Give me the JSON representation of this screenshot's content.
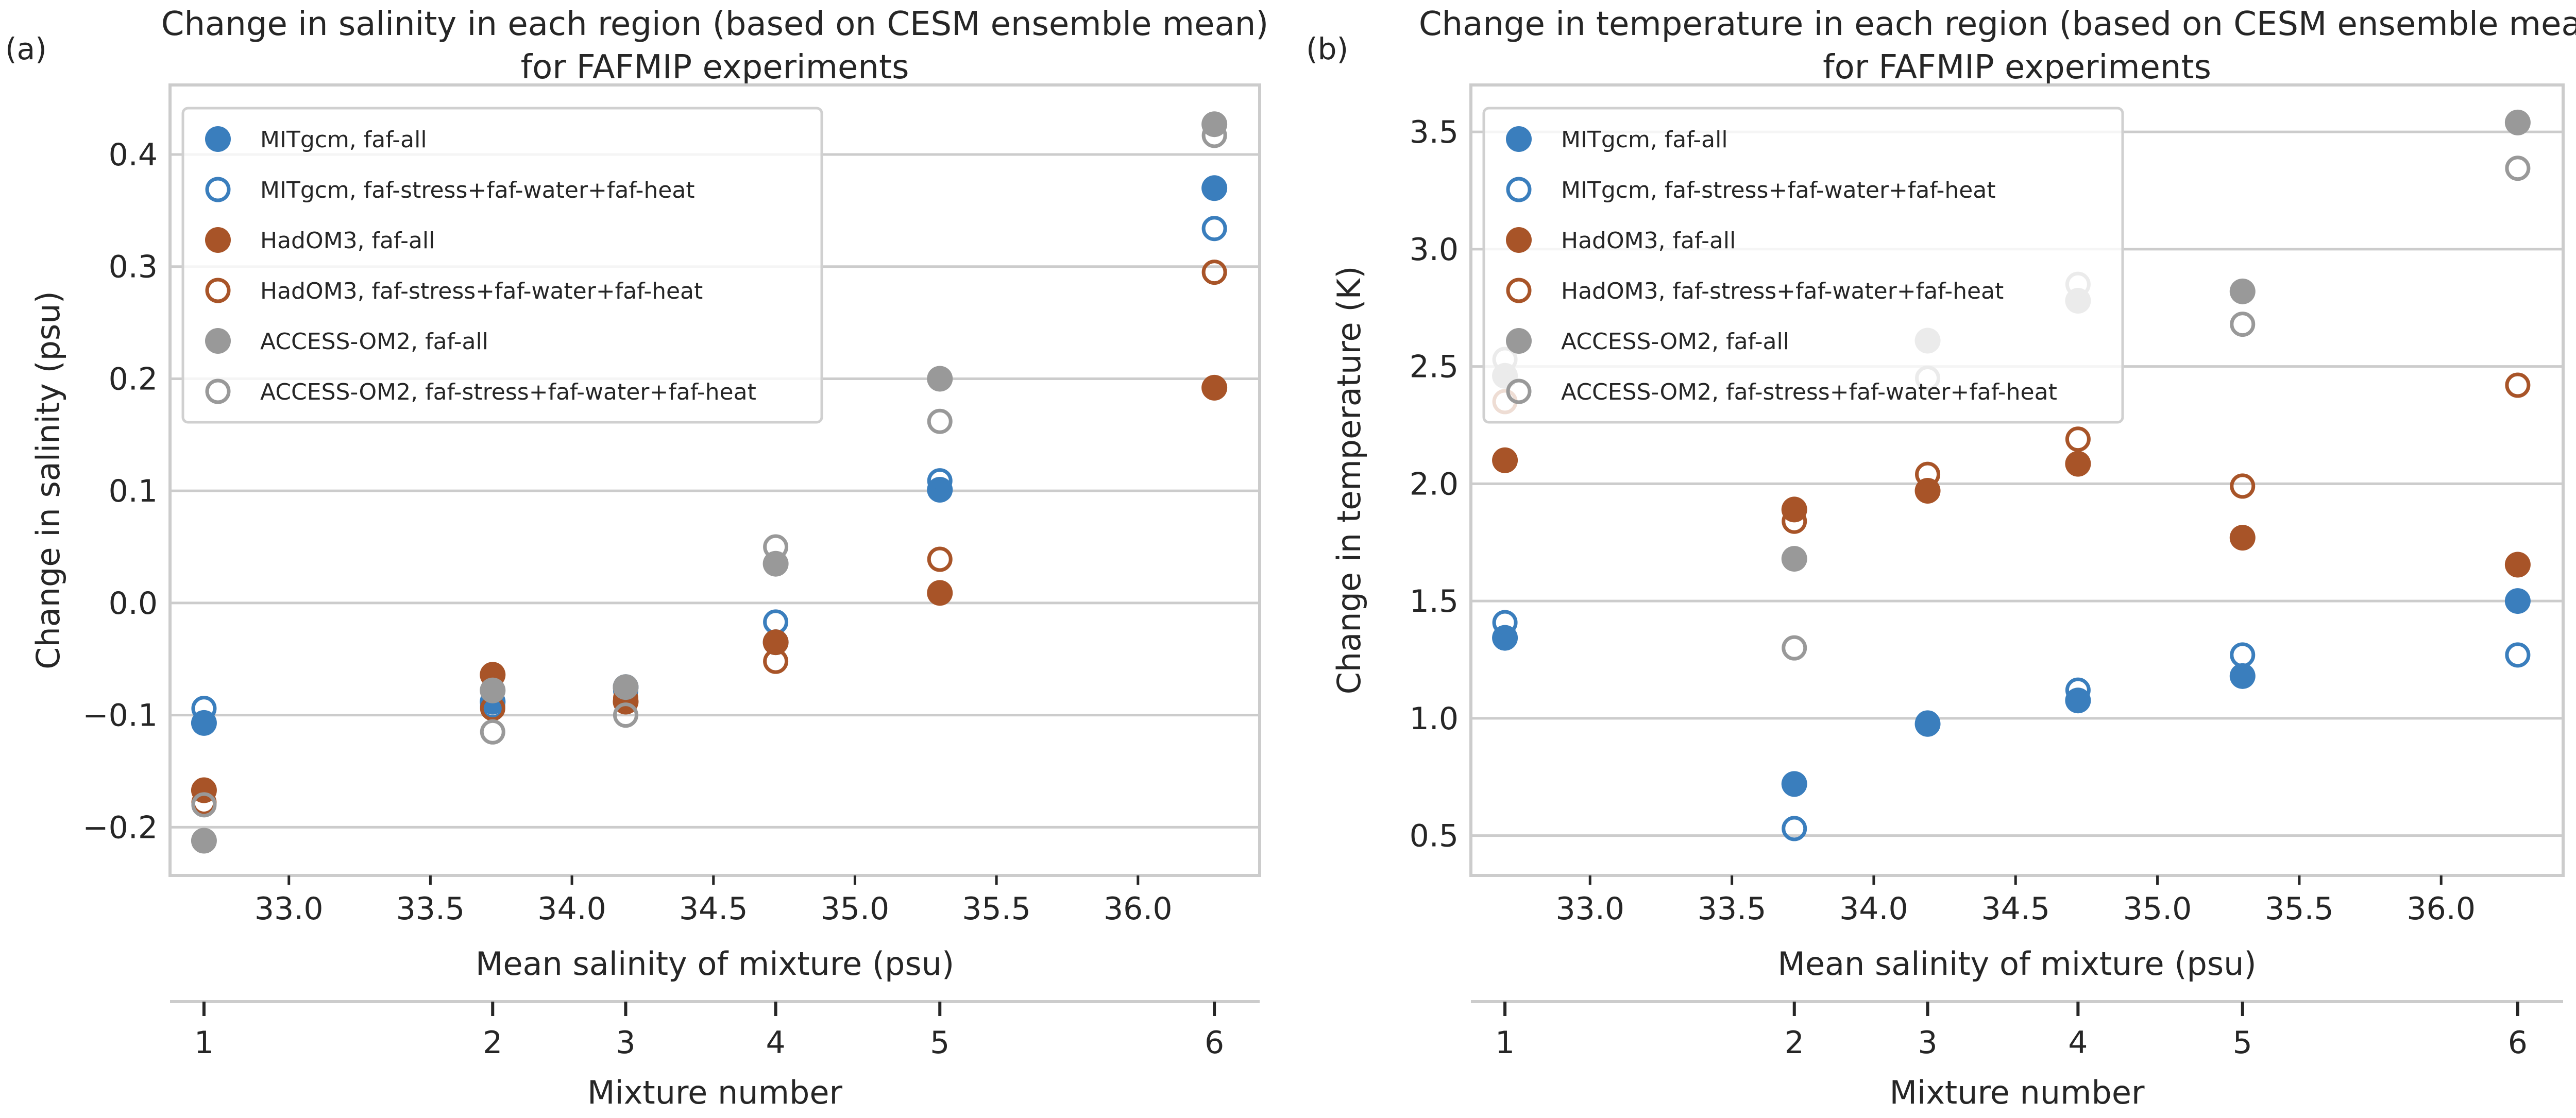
{
  "colors": {
    "MITgcm": "#3a7ebd",
    "HadOM3": "#a85428",
    "ACCESS-OM2": "#999999",
    "grid": "#cccccc",
    "spine": "#cccccc"
  },
  "legend": [
    {
      "label": "MITgcm, faf-all",
      "model": "MITgcm",
      "filled": true
    },
    {
      "label": "MITgcm, faf-stress+faf-water+faf-heat",
      "model": "MITgcm",
      "filled": false
    },
    {
      "label": "HadOM3, faf-all",
      "model": "HadOM3",
      "filled": true
    },
    {
      "label": "HadOM3, faf-stress+faf-water+faf-heat",
      "model": "HadOM3",
      "filled": false
    },
    {
      "label": "ACCESS-OM2, faf-all",
      "model": "ACCESS-OM2",
      "filled": true
    },
    {
      "label": "ACCESS-OM2, faf-stress+faf-water+faf-heat",
      "model": "ACCESS-OM2",
      "filled": false
    }
  ],
  "chart_data": [
    {
      "type": "scatter",
      "panel_label": "(a)",
      "title": "Change in salinity in each region (based on CESM ensemble mean)",
      "title_line2": "for FAFMIP experiments",
      "xlabel": "Mean salinity of mixture (psu)",
      "ylabel": "Change in salinity (psu)",
      "secondary_xlabel": "Mixture number",
      "xlim": [
        32.58,
        36.43
      ],
      "ylim": [
        -0.243,
        0.462
      ],
      "xticks": [
        33.0,
        33.5,
        34.0,
        34.5,
        35.0,
        35.5,
        36.0
      ],
      "xtick_labels": [
        "33.0",
        "33.5",
        "34.0",
        "34.5",
        "35.0",
        "35.5",
        "36.0"
      ],
      "yticks": [
        -0.2,
        -0.1,
        0.0,
        0.1,
        0.2,
        0.3,
        0.4
      ],
      "ytick_labels": [
        "−0.2",
        "−0.1",
        "0.0",
        "0.1",
        "0.2",
        "0.3",
        "0.4"
      ],
      "grid": "horizontal",
      "legend_position": "top-left",
      "x": [
        32.7,
        33.72,
        34.19,
        34.72,
        35.3,
        36.27
      ],
      "mixture_numbers": [
        "1",
        "2",
        "3",
        "4",
        "5",
        "6"
      ],
      "series": [
        {
          "name": "MITgcm, faf-all",
          "values": [
            -0.107,
            -0.088,
            -0.075,
            -0.035,
            0.101,
            0.37
          ]
        },
        {
          "name": "MITgcm, faf-stress+faf-water+faf-heat",
          "values": [
            -0.094,
            -0.092,
            -0.078,
            -0.017,
            0.109,
            0.334
          ]
        },
        {
          "name": "HadOM3, faf-all",
          "values": [
            -0.167,
            -0.064,
            -0.088,
            -0.035,
            0.009,
            0.192
          ]
        },
        {
          "name": "HadOM3, faf-stress+faf-water+faf-heat",
          "values": [
            -0.178,
            -0.094,
            -0.085,
            -0.052,
            0.039,
            0.295
          ]
        },
        {
          "name": "ACCESS-OM2, faf-all",
          "values": [
            -0.212,
            -0.078,
            -0.075,
            0.035,
            0.2,
            0.427
          ]
        },
        {
          "name": "ACCESS-OM2, faf-stress+faf-water+faf-heat",
          "values": [
            -0.18,
            -0.115,
            -0.1,
            0.05,
            0.162,
            0.417
          ]
        }
      ]
    },
    {
      "type": "scatter",
      "panel_label": "(b)",
      "title": "Change in temperature in each region (based on CESM ensemble mean)",
      "title_line2": "for FAFMIP experiments",
      "xlabel": "Mean salinity of mixture (psu)",
      "ylabel": "Change in temperature (K)",
      "secondary_xlabel": "Mixture number",
      "xlim": [
        32.58,
        36.43
      ],
      "ylim": [
        0.33,
        3.7
      ],
      "xticks": [
        33.0,
        33.5,
        34.0,
        34.5,
        35.0,
        35.5,
        36.0
      ],
      "xtick_labels": [
        "33.0",
        "33.5",
        "34.0",
        "34.5",
        "35.0",
        "35.5",
        "36.0"
      ],
      "yticks": [
        0.5,
        1.0,
        1.5,
        2.0,
        2.5,
        3.0,
        3.5
      ],
      "ytick_labels": [
        "0.5",
        "1.0",
        "1.5",
        "2.0",
        "2.5",
        "3.0",
        "3.5"
      ],
      "grid": "horizontal",
      "legend_position": "top-left",
      "x": [
        32.7,
        33.72,
        34.19,
        34.72,
        35.3,
        36.27
      ],
      "mixture_numbers": [
        "1",
        "2",
        "3",
        "4",
        "5",
        "6"
      ],
      "series": [
        {
          "name": "MITgcm, faf-all",
          "values": [
            1.343,
            0.72,
            0.976,
            1.076,
            1.18,
            1.5
          ]
        },
        {
          "name": "MITgcm, faf-stress+faf-water+faf-heat",
          "values": [
            1.408,
            0.53,
            0.98,
            1.12,
            1.27,
            1.27
          ]
        },
        {
          "name": "HadOM3, faf-all",
          "values": [
            2.1,
            1.89,
            1.97,
            2.085,
            1.77,
            1.655
          ]
        },
        {
          "name": "HadOM3, faf-stress+faf-water+faf-heat",
          "values": [
            2.35,
            1.84,
            2.04,
            2.19,
            1.99,
            2.42
          ]
        },
        {
          "name": "ACCESS-OM2, faf-all",
          "values": [
            2.46,
            1.68,
            2.61,
            2.78,
            2.82,
            3.54
          ]
        },
        {
          "name": "ACCESS-OM2, faf-stress+faf-water+faf-heat",
          "values": [
            2.53,
            1.3,
            2.45,
            2.85,
            2.68,
            3.345
          ]
        }
      ]
    }
  ]
}
